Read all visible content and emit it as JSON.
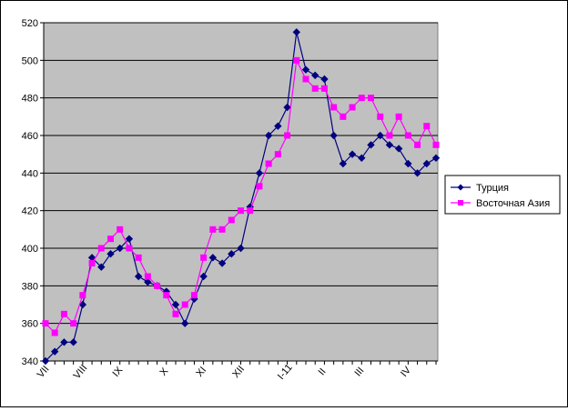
{
  "chart_data": {
    "type": "line",
    "title": "",
    "xlabel": "",
    "ylabel": "",
    "ylim": [
      340,
      520
    ],
    "yticks": [
      340,
      360,
      380,
      400,
      420,
      440,
      460,
      480,
      500,
      520
    ],
    "grid": "horizontal",
    "legend_position": "right",
    "month_labels": [
      {
        "label": "VII",
        "index": 0
      },
      {
        "label": "VIII",
        "index": 4
      },
      {
        "label": "IX",
        "index": 8
      },
      {
        "label": "X",
        "index": 13
      },
      {
        "label": "XI",
        "index": 17
      },
      {
        "label": "XII",
        "index": 21
      },
      {
        "label": "I-11",
        "index": 26
      },
      {
        "label": "II",
        "index": 30
      },
      {
        "label": "III",
        "index": 34
      },
      {
        "label": "IV",
        "index": 39
      }
    ],
    "series": [
      {
        "name": "Турция",
        "color": "#000080",
        "marker": "diamond",
        "values": [
          340,
          345,
          350,
          350,
          370,
          395,
          390,
          397,
          400,
          405,
          385,
          382,
          380,
          377,
          370,
          360,
          373,
          385,
          395,
          392,
          397,
          400,
          422,
          440,
          460,
          465,
          475,
          515,
          495,
          492,
          490,
          460,
          445,
          450,
          448,
          455,
          460,
          455,
          453,
          445,
          440,
          445,
          448
        ]
      },
      {
        "name": "Восточная Азия",
        "color": "#FF00FF",
        "marker": "square",
        "values": [
          360,
          355,
          365,
          360,
          375,
          392,
          400,
          405,
          410,
          400,
          395,
          385,
          380,
          375,
          365,
          370,
          375,
          395,
          410,
          410,
          415,
          420,
          420,
          433,
          445,
          450,
          460,
          500,
          490,
          485,
          485,
          475,
          470,
          475,
          480,
          480,
          470,
          460,
          470,
          460,
          455,
          465,
          455
        ]
      }
    ]
  }
}
